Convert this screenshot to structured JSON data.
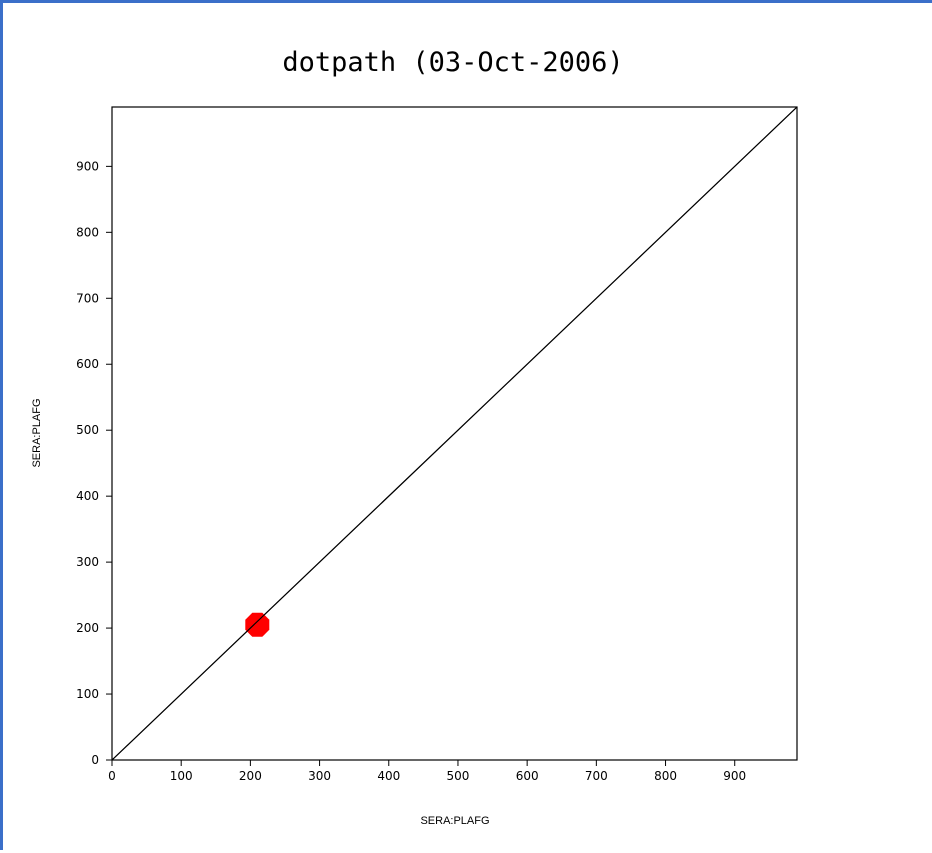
{
  "chart_data": {
    "type": "line",
    "title": "dotpath (03-Oct-2006)",
    "xlabel": "SERA:PLAFG",
    "ylabel": "SERA:PLAFG",
    "xlim": [
      0,
      990
    ],
    "ylim": [
      0,
      990
    ],
    "x_ticks": [
      0,
      100,
      200,
      300,
      400,
      500,
      600,
      700,
      800,
      900
    ],
    "y_ticks": [
      0,
      100,
      200,
      300,
      400,
      500,
      600,
      700,
      800,
      900
    ],
    "grid": false,
    "series": [
      {
        "type": "line",
        "color": "#000000",
        "points": [
          [
            0,
            0
          ],
          [
            990,
            990
          ]
        ]
      },
      {
        "type": "marker",
        "marker": "octagon",
        "color": "#ff0000",
        "points": [
          [
            210,
            205
          ]
        ]
      }
    ]
  },
  "colors": {
    "window_border": "#3b6fc9",
    "marker": "#ff0000",
    "line": "#000000"
  }
}
